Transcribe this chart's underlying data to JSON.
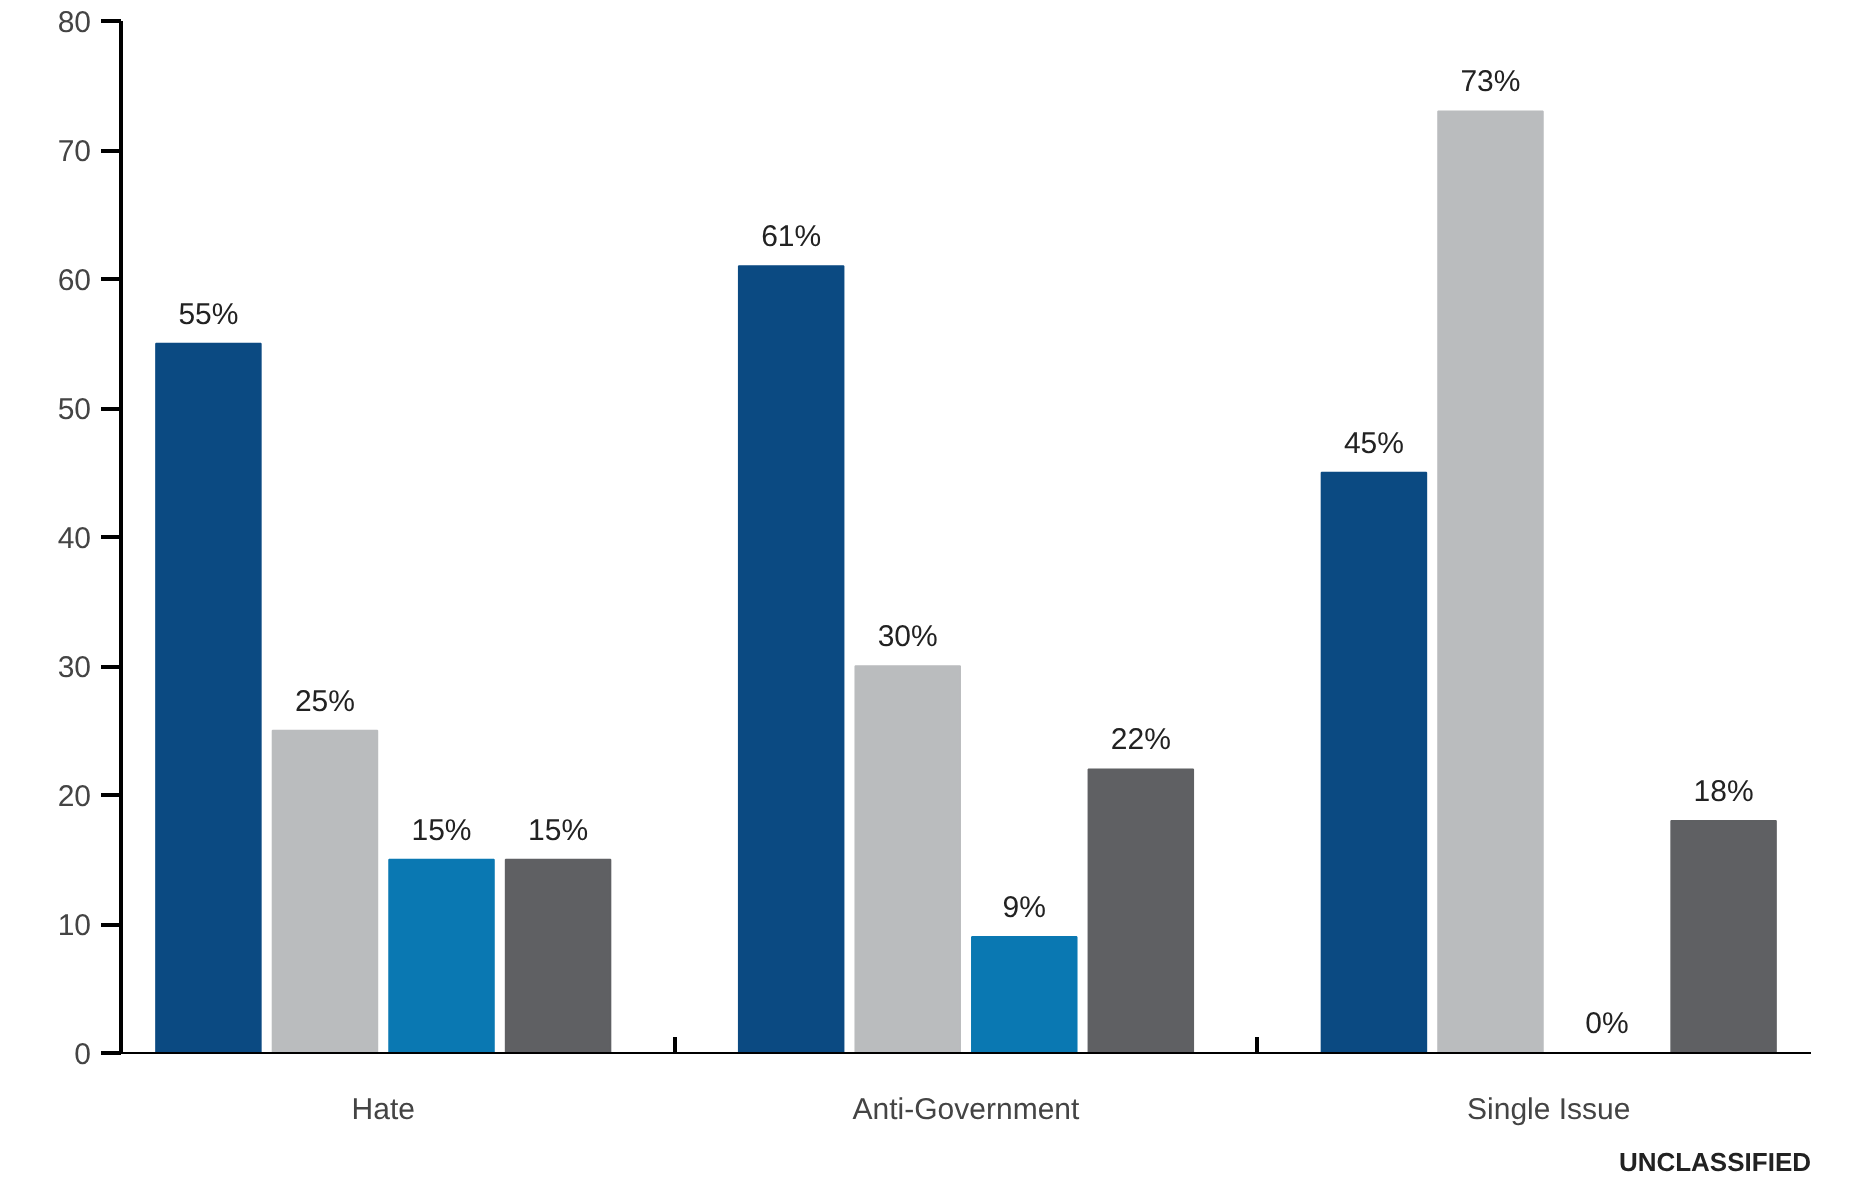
{
  "chart_data": {
    "type": "bar",
    "categories": [
      "Hate",
      "Anti-Government",
      "Single Issue"
    ],
    "series": [
      {
        "color": "#0b4a82",
        "values": [
          55,
          61,
          45
        ],
        "value_labels": [
          "55%",
          "61%",
          "45%"
        ]
      },
      {
        "color": "#babcbe",
        "values": [
          25,
          30,
          73
        ],
        "value_labels": [
          "25%",
          "30%",
          "73%"
        ]
      },
      {
        "color": "#0a78b2",
        "values": [
          15,
          9,
          0
        ],
        "value_labels": [
          "15%",
          "9%",
          "0%"
        ]
      },
      {
        "color": "#5f6063",
        "values": [
          15,
          22,
          18
        ],
        "value_labels": [
          "15%",
          "22%",
          "18%"
        ]
      }
    ],
    "ylim": [
      0,
      80
    ],
    "yticks": [
      0,
      10,
      20,
      30,
      40,
      50,
      60,
      70,
      80
    ],
    "grid": false,
    "annotations": [
      "UNCLASSIFIED"
    ]
  }
}
